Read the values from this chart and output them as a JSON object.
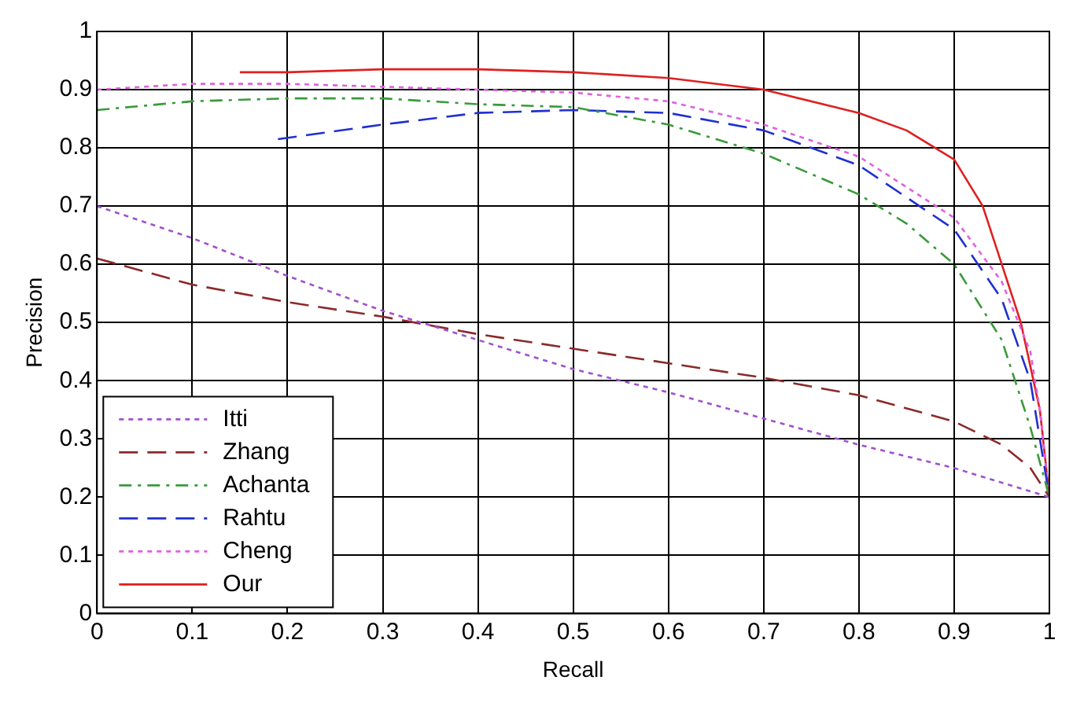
{
  "chart_data": {
    "type": "line",
    "xlabel": "Recall",
    "ylabel": "Precision",
    "xlim": [
      0,
      1
    ],
    "ylim": [
      0,
      1
    ],
    "xticks": [
      0,
      0.1,
      0.2,
      0.3,
      0.4,
      0.5,
      0.6,
      0.7,
      0.8,
      0.9,
      1
    ],
    "yticks": [
      0,
      0.1,
      0.2,
      0.3,
      0.4,
      0.5,
      0.6,
      0.7,
      0.8,
      0.9,
      1
    ],
    "grid": true,
    "legend": "bottom left",
    "marker": "none",
    "series": [
      {
        "name": "Itti",
        "color": "#a050d0",
        "line_style": "dotted",
        "x": [
          0,
          0.1,
          0.2,
          0.3,
          0.4,
          0.5,
          0.6,
          0.7,
          0.8,
          0.9,
          1
        ],
        "values": [
          0.7,
          0.645,
          0.58,
          0.52,
          0.47,
          0.42,
          0.38,
          0.335,
          0.29,
          0.25,
          0.2
        ]
      },
      {
        "name": "Zhang",
        "color": "#8b2a2a",
        "line_style": "dashed",
        "x": [
          0,
          0.1,
          0.2,
          0.3,
          0.4,
          0.5,
          0.6,
          0.7,
          0.8,
          0.9,
          0.95,
          0.98,
          1
        ],
        "values": [
          0.61,
          0.565,
          0.535,
          0.51,
          0.48,
          0.455,
          0.43,
          0.405,
          0.375,
          0.33,
          0.29,
          0.25,
          0.2
        ]
      },
      {
        "name": "Achanta",
        "color": "#3a9a3a",
        "line_style": "dashdot",
        "x": [
          0,
          0.1,
          0.2,
          0.3,
          0.4,
          0.5,
          0.6,
          0.7,
          0.8,
          0.85,
          0.9,
          0.95,
          0.98,
          1
        ],
        "values": [
          0.865,
          0.88,
          0.885,
          0.885,
          0.875,
          0.87,
          0.84,
          0.79,
          0.72,
          0.67,
          0.6,
          0.47,
          0.32,
          0.2
        ]
      },
      {
        "name": "Rahtu",
        "color": "#2030d0",
        "line_style": "dashed",
        "x": [
          0.19,
          0.3,
          0.4,
          0.5,
          0.6,
          0.7,
          0.8,
          0.9,
          0.95,
          0.98,
          1
        ],
        "values": [
          0.815,
          0.84,
          0.86,
          0.865,
          0.86,
          0.83,
          0.77,
          0.66,
          0.54,
          0.4,
          0.2
        ]
      },
      {
        "name": "Cheng",
        "color": "#e060e0",
        "line_style": "dotted",
        "x": [
          0,
          0.1,
          0.2,
          0.3,
          0.4,
          0.5,
          0.6,
          0.7,
          0.8,
          0.9,
          0.95,
          0.98,
          0.99,
          1
        ],
        "values": [
          0.9,
          0.91,
          0.91,
          0.905,
          0.9,
          0.895,
          0.88,
          0.84,
          0.785,
          0.68,
          0.57,
          0.45,
          0.35,
          0.2
        ]
      },
      {
        "name": "Our",
        "color": "#e02020",
        "line_style": "solid",
        "x": [
          0.15,
          0.2,
          0.3,
          0.4,
          0.5,
          0.6,
          0.7,
          0.8,
          0.85,
          0.9,
          0.93,
          0.95,
          0.97,
          0.99,
          1
        ],
        "values": [
          0.93,
          0.93,
          0.935,
          0.935,
          0.93,
          0.92,
          0.9,
          0.86,
          0.83,
          0.78,
          0.7,
          0.6,
          0.5,
          0.35,
          0.2
        ]
      }
    ]
  }
}
